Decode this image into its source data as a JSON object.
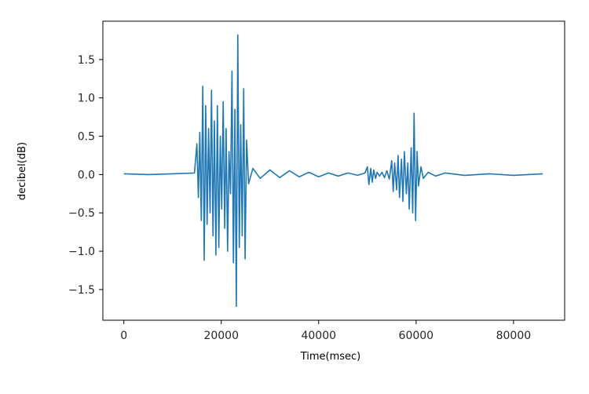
{
  "chart_data": {
    "type": "line",
    "title": "",
    "xlabel": "Time(msec)",
    "ylabel": "decibel(dB)",
    "xlim": [
      -4300,
      90500
    ],
    "ylim": [
      -1.9,
      2.0
    ],
    "x_ticks": [
      0,
      20000,
      40000,
      60000,
      80000
    ],
    "x_tick_labels": [
      "0",
      "20000",
      "40000",
      "60000",
      "80000"
    ],
    "y_ticks": [
      1.5,
      1.0,
      0.5,
      0.0,
      -0.5,
      -1.0,
      -1.5
    ],
    "y_tick_labels": [
      "1.5",
      "1.0",
      "0.5",
      "0.0",
      "−0.5",
      "−1.0",
      "−1.5"
    ],
    "grid": false,
    "legend": "none",
    "series": [
      {
        "color": "#1f77b4",
        "x": [
          0,
          5000,
          10000,
          14500,
          15000,
          15300,
          15600,
          15900,
          16200,
          16500,
          16800,
          17100,
          17400,
          17700,
          18000,
          18300,
          18600,
          18900,
          19200,
          19500,
          19800,
          20100,
          20400,
          20700,
          21000,
          21300,
          21600,
          21900,
          22200,
          22500,
          22800,
          23100,
          23400,
          23700,
          24000,
          24300,
          24600,
          24900,
          25200,
          25600,
          26500,
          28000,
          30000,
          32000,
          34000,
          36000,
          38000,
          40000,
          42000,
          44000,
          46000,
          48000,
          49500,
          50000,
          50300,
          50700,
          51000,
          51300,
          51700,
          52000,
          52500,
          53000,
          53500,
          54000,
          54500,
          55000,
          55300,
          55600,
          56000,
          56300,
          56600,
          57000,
          57300,
          57600,
          58000,
          58300,
          58600,
          59000,
          59300,
          59600,
          59900,
          60200,
          60500,
          61000,
          61500,
          62500,
          64000,
          66000,
          70000,
          75000,
          80000,
          86000
        ],
        "y": [
          0.01,
          0.0,
          0.01,
          0.02,
          0.4,
          -0.3,
          0.55,
          -0.6,
          1.15,
          -1.12,
          0.9,
          -0.65,
          0.6,
          -0.5,
          1.1,
          -0.8,
          0.7,
          -1.05,
          0.9,
          -0.95,
          0.5,
          -0.45,
          0.95,
          -0.7,
          0.6,
          -1.0,
          0.3,
          -0.25,
          1.35,
          -1.15,
          0.85,
          -1.72,
          1.82,
          -0.95,
          0.65,
          -0.8,
          1.12,
          -1.1,
          0.45,
          -0.12,
          0.08,
          -0.05,
          0.06,
          -0.04,
          0.05,
          -0.03,
          0.03,
          -0.03,
          0.02,
          -0.02,
          0.02,
          -0.01,
          0.02,
          0.1,
          -0.13,
          0.08,
          -0.1,
          0.06,
          -0.05,
          0.03,
          -0.02,
          0.03,
          -0.04,
          0.05,
          -0.06,
          0.18,
          -0.22,
          0.15,
          -0.2,
          0.25,
          -0.3,
          0.2,
          -0.35,
          0.3,
          -0.25,
          0.15,
          -0.45,
          0.35,
          -0.5,
          0.8,
          -0.6,
          0.3,
          -0.15,
          0.1,
          -0.05,
          0.03,
          -0.02,
          0.02,
          -0.01,
          0.01,
          -0.01,
          0.01
        ]
      }
    ]
  }
}
